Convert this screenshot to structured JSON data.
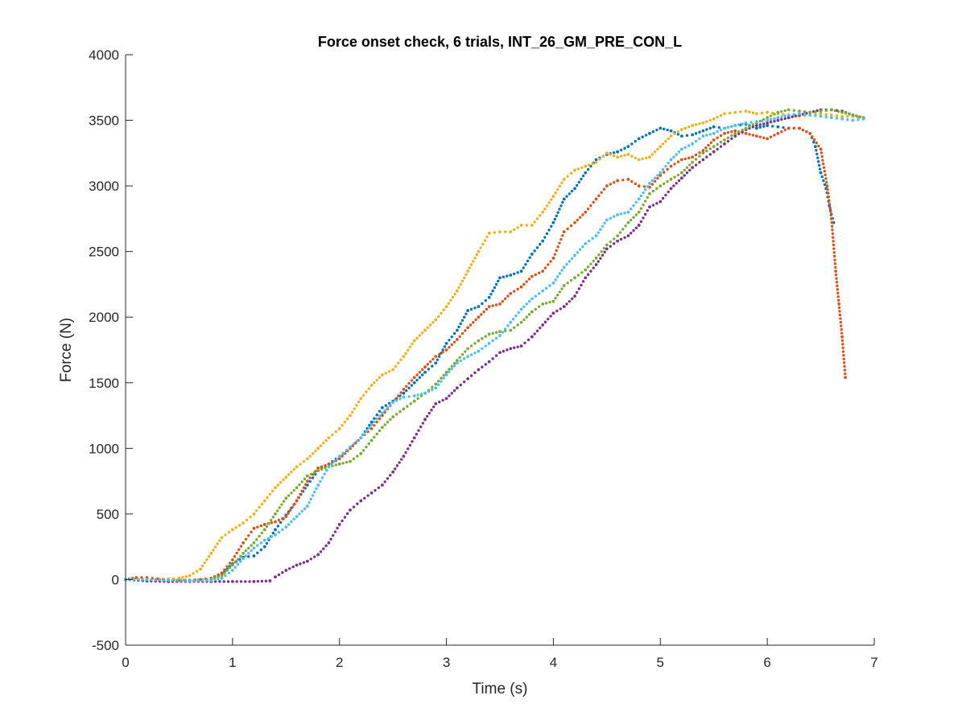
{
  "chart_data": {
    "type": "scatter",
    "title": "Force onset check, 6 trials, INT_26_GM_PRE_CON_L",
    "xlabel": "Time (s)",
    "ylabel": "Force (N)",
    "xlim": [
      0,
      7
    ],
    "ylim": [
      -500,
      4000
    ],
    "xticks": [
      "0",
      "1",
      "2",
      "3",
      "4",
      "5",
      "6",
      "7"
    ],
    "yticks": [
      "-500",
      "0",
      "500",
      "1000",
      "1500",
      "2000",
      "2500",
      "3000",
      "3500",
      "4000"
    ],
    "grid": false,
    "legend": "none",
    "series": [
      {
        "color": "#0072BD",
        "x": [
          0.0,
          0.2,
          0.4,
          0.6,
          0.8,
          0.9,
          1.0,
          1.1,
          1.2,
          1.3,
          1.4,
          1.5,
          1.6,
          1.7,
          1.8,
          1.9,
          2.0,
          2.1,
          2.2,
          2.3,
          2.4,
          2.5,
          2.6,
          2.7,
          2.8,
          2.9,
          3.0,
          3.1,
          3.2,
          3.3,
          3.4,
          3.5,
          3.6,
          3.7,
          3.8,
          3.9,
          4.0,
          4.1,
          4.2,
          4.3,
          4.4,
          4.5,
          4.6,
          4.7,
          4.8,
          4.9,
          5.0,
          5.1,
          5.2,
          5.3,
          5.4,
          5.5,
          5.6,
          5.7,
          5.8,
          5.9,
          6.0,
          6.1,
          6.2,
          6.3,
          6.4,
          6.45,
          6.5,
          6.55,
          6.58,
          6.62
        ],
        "y": [
          0,
          -10,
          -15,
          -5,
          0,
          40,
          120,
          170,
          180,
          250,
          380,
          490,
          600,
          720,
          830,
          880,
          940,
          1000,
          1080,
          1200,
          1310,
          1360,
          1420,
          1500,
          1580,
          1650,
          1800,
          1900,
          2050,
          2080,
          2150,
          2300,
          2320,
          2350,
          2480,
          2580,
          2720,
          2900,
          2980,
          3100,
          3200,
          3240,
          3260,
          3300,
          3360,
          3400,
          3440,
          3420,
          3380,
          3390,
          3420,
          3450,
          3440,
          3460,
          3470,
          3440,
          3460,
          3450,
          3440,
          3440,
          3400,
          3300,
          3100,
          2980,
          2850,
          2720
        ]
      },
      {
        "color": "#D95319",
        "x": [
          0.0,
          0.1,
          0.2,
          0.3,
          0.4,
          0.5,
          0.6,
          0.7,
          0.8,
          0.9,
          1.0,
          1.1,
          1.2,
          1.3,
          1.4,
          1.5,
          1.6,
          1.7,
          1.8,
          1.9,
          2.0,
          2.1,
          2.2,
          2.3,
          2.4,
          2.5,
          2.6,
          2.7,
          2.8,
          2.9,
          3.0,
          3.1,
          3.2,
          3.3,
          3.4,
          3.5,
          3.6,
          3.7,
          3.8,
          3.9,
          4.0,
          4.1,
          4.2,
          4.3,
          4.4,
          4.5,
          4.6,
          4.7,
          4.8,
          4.9,
          5.0,
          5.1,
          5.2,
          5.3,
          5.4,
          5.5,
          5.6,
          5.7,
          5.8,
          5.9,
          6.0,
          6.1,
          6.2,
          6.3,
          6.4,
          6.5,
          6.56,
          6.6,
          6.64,
          6.67,
          6.7,
          6.73
        ],
        "y": [
          0,
          15,
          15,
          5,
          0,
          -5,
          -5,
          0,
          10,
          50,
          150,
          280,
          390,
          420,
          440,
          480,
          600,
          750,
          850,
          880,
          920,
          1000,
          1080,
          1150,
          1250,
          1350,
          1450,
          1540,
          1620,
          1700,
          1750,
          1830,
          1920,
          2000,
          2080,
          2100,
          2180,
          2230,
          2310,
          2350,
          2450,
          2650,
          2720,
          2800,
          2900,
          3000,
          3040,
          3050,
          3000,
          2990,
          3080,
          3150,
          3200,
          3220,
          3270,
          3350,
          3400,
          3420,
          3400,
          3380,
          3360,
          3400,
          3440,
          3440,
          3400,
          3280,
          3000,
          2750,
          2350,
          2100,
          1850,
          1540
        ]
      },
      {
        "color": "#EDB120",
        "x": [
          0.0,
          0.2,
          0.4,
          0.5,
          0.6,
          0.7,
          0.8,
          0.9,
          1.0,
          1.1,
          1.2,
          1.3,
          1.4,
          1.5,
          1.6,
          1.7,
          1.8,
          1.9,
          2.0,
          2.1,
          2.2,
          2.3,
          2.4,
          2.5,
          2.6,
          2.7,
          2.8,
          2.9,
          3.0,
          3.1,
          3.2,
          3.3,
          3.4,
          3.5,
          3.6,
          3.7,
          3.8,
          3.9,
          4.0,
          4.1,
          4.2,
          4.3,
          4.4,
          4.5,
          4.6,
          4.7,
          4.8,
          4.9,
          5.0,
          5.1,
          5.2,
          5.3,
          5.4,
          5.5,
          5.6,
          5.7,
          5.8,
          5.9,
          6.0,
          6.1,
          6.2,
          6.3,
          6.4,
          6.5,
          6.6,
          6.7,
          6.8,
          6.9
        ],
        "y": [
          0,
          0,
          5,
          10,
          30,
          80,
          200,
          320,
          380,
          430,
          500,
          600,
          700,
          780,
          860,
          920,
          1000,
          1080,
          1150,
          1250,
          1380,
          1480,
          1560,
          1600,
          1700,
          1820,
          1900,
          1980,
          2080,
          2200,
          2350,
          2500,
          2640,
          2650,
          2650,
          2700,
          2700,
          2800,
          2920,
          3050,
          3120,
          3150,
          3180,
          3250,
          3220,
          3240,
          3200,
          3220,
          3300,
          3380,
          3430,
          3460,
          3480,
          3510,
          3550,
          3560,
          3570,
          3550,
          3560,
          3550,
          3540,
          3530,
          3540,
          3550,
          3540,
          3530,
          3530,
          3520
        ]
      },
      {
        "color": "#7E2F8E",
        "x": [
          0.0,
          0.2,
          0.4,
          0.6,
          0.8,
          1.0,
          1.2,
          1.35,
          1.4,
          1.5,
          1.6,
          1.7,
          1.8,
          1.9,
          2.0,
          2.1,
          2.2,
          2.3,
          2.4,
          2.5,
          2.6,
          2.7,
          2.8,
          2.9,
          3.0,
          3.1,
          3.2,
          3.3,
          3.4,
          3.5,
          3.6,
          3.7,
          3.8,
          3.9,
          4.0,
          4.1,
          4.2,
          4.3,
          4.4,
          4.5,
          4.6,
          4.7,
          4.8,
          4.9,
          5.0,
          5.1,
          5.2,
          5.3,
          5.4,
          5.5,
          5.6,
          5.7,
          5.8,
          5.9,
          6.0,
          6.1,
          6.2,
          6.3,
          6.4,
          6.5,
          6.6,
          6.7,
          6.8,
          6.9
        ],
        "y": [
          0,
          -10,
          -15,
          -15,
          -15,
          -15,
          -15,
          -10,
          20,
          70,
          110,
          140,
          190,
          280,
          420,
          530,
          600,
          660,
          720,
          820,
          940,
          1080,
          1220,
          1340,
          1380,
          1460,
          1530,
          1600,
          1660,
          1730,
          1760,
          1780,
          1850,
          1940,
          2030,
          2080,
          2160,
          2300,
          2400,
          2520,
          2580,
          2620,
          2700,
          2840,
          2880,
          2980,
          3060,
          3140,
          3200,
          3260,
          3320,
          3380,
          3430,
          3460,
          3480,
          3500,
          3520,
          3540,
          3560,
          3580,
          3580,
          3570,
          3540,
          3520
        ]
      },
      {
        "color": "#77AC30",
        "x": [
          0.0,
          0.2,
          0.4,
          0.6,
          0.8,
          0.9,
          1.0,
          1.1,
          1.2,
          1.3,
          1.4,
          1.5,
          1.6,
          1.7,
          1.8,
          1.9,
          2.0,
          2.1,
          2.2,
          2.3,
          2.4,
          2.5,
          2.6,
          2.7,
          2.8,
          2.9,
          3.0,
          3.1,
          3.2,
          3.3,
          3.4,
          3.5,
          3.6,
          3.7,
          3.8,
          3.9,
          4.0,
          4.1,
          4.2,
          4.3,
          4.4,
          4.5,
          4.6,
          4.7,
          4.8,
          4.9,
          5.0,
          5.1,
          5.2,
          5.3,
          5.4,
          5.5,
          5.6,
          5.7,
          5.8,
          5.9,
          6.0,
          6.1,
          6.2,
          6.3,
          6.4,
          6.5,
          6.6,
          6.7,
          6.8,
          6.9
        ],
        "y": [
          0,
          0,
          -5,
          -5,
          0,
          30,
          110,
          200,
          280,
          380,
          500,
          620,
          700,
          790,
          830,
          860,
          880,
          900,
          960,
          1060,
          1160,
          1240,
          1300,
          1360,
          1420,
          1490,
          1580,
          1670,
          1760,
          1820,
          1870,
          1890,
          1900,
          1960,
          2040,
          2100,
          2120,
          2240,
          2300,
          2360,
          2450,
          2550,
          2620,
          2720,
          2800,
          2940,
          3000,
          3050,
          3100,
          3180,
          3250,
          3300,
          3350,
          3400,
          3440,
          3480,
          3520,
          3560,
          3580,
          3570,
          3560,
          3570,
          3580,
          3560,
          3540,
          3520
        ]
      },
      {
        "color": "#4DBEEE",
        "x": [
          0.0,
          0.2,
          0.4,
          0.6,
          0.8,
          0.9,
          1.0,
          1.1,
          1.2,
          1.3,
          1.4,
          1.5,
          1.6,
          1.7,
          1.8,
          1.9,
          2.0,
          2.1,
          2.2,
          2.3,
          2.4,
          2.5,
          2.6,
          2.7,
          2.8,
          2.9,
          3.0,
          3.1,
          3.2,
          3.3,
          3.4,
          3.5,
          3.6,
          3.7,
          3.8,
          3.9,
          4.0,
          4.1,
          4.2,
          4.3,
          4.4,
          4.5,
          4.6,
          4.7,
          4.8,
          4.9,
          5.0,
          5.1,
          5.2,
          5.3,
          5.4,
          5.5,
          5.6,
          5.7,
          5.8,
          5.9,
          6.0,
          6.1,
          6.2,
          6.3,
          6.4,
          6.5,
          6.6,
          6.7,
          6.8,
          6.9
        ],
        "y": [
          0,
          0,
          -5,
          -10,
          -5,
          10,
          70,
          160,
          240,
          300,
          340,
          400,
          480,
          560,
          720,
          860,
          940,
          1010,
          1080,
          1180,
          1270,
          1350,
          1390,
          1400,
          1420,
          1460,
          1560,
          1650,
          1700,
          1740,
          1800,
          1860,
          1960,
          2060,
          2140,
          2200,
          2260,
          2380,
          2470,
          2560,
          2620,
          2740,
          2780,
          2800,
          2900,
          3020,
          3100,
          3200,
          3280,
          3320,
          3380,
          3400,
          3440,
          3460,
          3480,
          3490,
          3500,
          3520,
          3540,
          3550,
          3540,
          3530,
          3520,
          3510,
          3500,
          3510
        ]
      }
    ]
  }
}
